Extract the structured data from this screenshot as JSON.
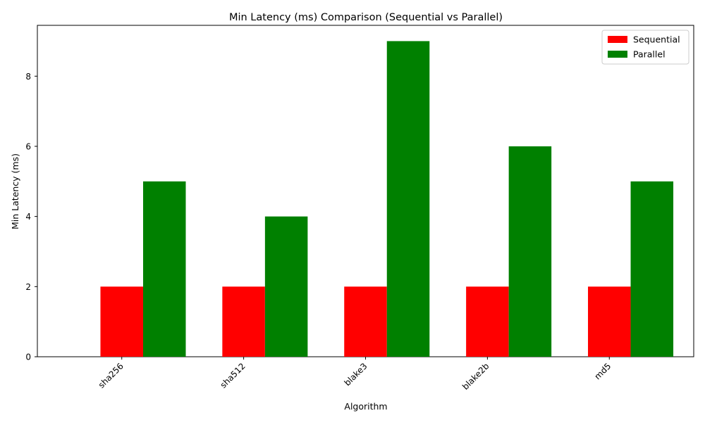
{
  "chart_data": {
    "type": "bar",
    "title": "Min Latency (ms) Comparison (Sequential vs Parallel)",
    "xlabel": "Algorithm",
    "ylabel": "Min Latency (ms)",
    "categories": [
      "sha256",
      "sha512",
      "blake3",
      "blake2b",
      "md5"
    ],
    "series": [
      {
        "name": "Sequential",
        "color": "#ff0000",
        "values": [
          2,
          2,
          2,
          2,
          2
        ]
      },
      {
        "name": "Parallel",
        "color": "#008000",
        "values": [
          5,
          4,
          9,
          6,
          5
        ]
      }
    ],
    "ylim": [
      0,
      9.45
    ],
    "yticks": [
      0,
      2,
      4,
      6,
      8
    ],
    "grid": false,
    "legend_position": "top-right",
    "xtick_rotation": 45
  }
}
